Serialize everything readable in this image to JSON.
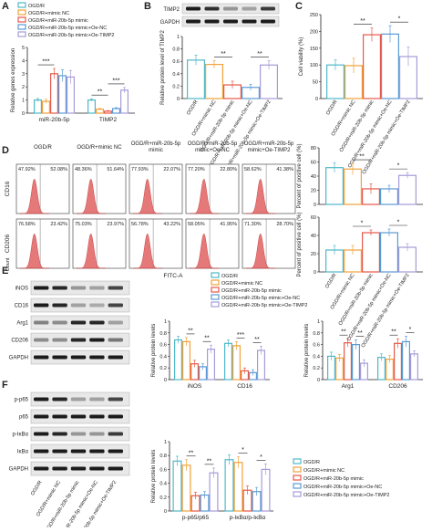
{
  "panel_letters": [
    "A",
    "B",
    "C",
    "D",
    "E",
    "F"
  ],
  "groups": [
    "OGD/R",
    "OGD/R+mimic NC",
    "OGD/R+miR-20b-5p mimic",
    "OGD/R+miR-20b-5p mimic+Oe-NC",
    "OGD/R+miR-20b-5p mimic+Oe-TIMP2"
  ],
  "group_axis_labels": [
    "OGD/R",
    "OGD/R+mimic NC",
    "OGD/R+miR-20b-5p mimic",
    "OGD/R+miR-20b-5p mimic+Oe-NC",
    "OGD/R+miR-20b-5p mimic+Oe-TIMP2"
  ],
  "colors": {
    "g1": "#4fb8c8",
    "g2": "#f0a23a",
    "g3": "#e6584a",
    "g4": "#5b9bd5",
    "g5": "#a79bd8",
    "hist_fill": "#e06060",
    "blot_bg": "#e8e8e8",
    "band": "#1c1c1c"
  },
  "chart_data": [
    {
      "id": "A",
      "type": "bar",
      "ylabel": "Relative genes expression",
      "ylim": [
        0,
        5
      ],
      "categories": [
        "miR-20b-5p",
        "TIMP2"
      ],
      "series_values": [
        [
          1.0,
          1.0
        ],
        [
          0.9,
          0.3
        ],
        [
          3.0,
          0.15
        ],
        [
          2.85,
          0.35
        ],
        [
          2.75,
          1.75
        ]
      ],
      "errors": [
        [
          0.12,
          0.1
        ],
        [
          0.15,
          0.06
        ],
        [
          0.4,
          0.05
        ],
        [
          0.45,
          0.07
        ],
        [
          0.5,
          0.2
        ]
      ],
      "sig": [
        {
          "cat": 0,
          "from": 0,
          "to": 2,
          "label": "***"
        },
        {
          "cat": 1,
          "from": 0,
          "to": 2,
          "label": "**"
        },
        {
          "cat": 1,
          "from": 2,
          "to": 4,
          "label": "***"
        }
      ]
    },
    {
      "id": "B",
      "type": "bar",
      "ylabel": "Relative protein level of TIMP2",
      "ylim": [
        0,
        1.0
      ],
      "values": [
        0.62,
        0.55,
        0.22,
        0.18,
        0.54
      ],
      "errors": [
        0.08,
        0.06,
        0.06,
        0.05,
        0.07
      ],
      "sig": [
        {
          "from": 1,
          "to": 2,
          "label": "**"
        },
        {
          "from": 3,
          "to": 4,
          "label": "**"
        }
      ]
    },
    {
      "id": "C",
      "type": "bar",
      "ylabel": "Cell viability (%)",
      "ylim": [
        0,
        250
      ],
      "values": [
        100,
        98,
        190,
        192,
        125
      ],
      "errors": [
        15,
        22,
        20,
        25,
        28
      ],
      "sig": [
        {
          "from": 1,
          "to": 2,
          "label": "**"
        },
        {
          "from": 3,
          "to": 4,
          "label": "*"
        }
      ]
    },
    {
      "id": "D-CD16",
      "type": "bar",
      "ylabel": "Percent of positive cell (%)",
      "ylim": [
        0,
        80
      ],
      "values": [
        52,
        50,
        22,
        22,
        41
      ],
      "errors": [
        7,
        8,
        7,
        5,
        4
      ],
      "sig": [
        {
          "from": 1,
          "to": 2,
          "label": "**"
        },
        {
          "from": 3,
          "to": 4,
          "label": "*"
        }
      ]
    },
    {
      "id": "D-CD206",
      "type": "bar",
      "ylabel": "Percent of positive cell (%)",
      "ylim": [
        0,
        60
      ],
      "values": [
        24,
        24,
        43,
        43,
        27
      ],
      "errors": [
        5,
        5,
        3,
        4,
        4
      ],
      "sig": [
        {
          "from": 1,
          "to": 2,
          "label": "*"
        },
        {
          "from": 3,
          "to": 4,
          "label": "*"
        }
      ]
    },
    {
      "id": "E-M1",
      "type": "bar",
      "ylabel": "Relative protein levels",
      "ylim": [
        0,
        1.0
      ],
      "categories": [
        "iNOS",
        "CD16"
      ],
      "series_values": [
        [
          0.68,
          0.62
        ],
        [
          0.65,
          0.58
        ],
        [
          0.27,
          0.15
        ],
        [
          0.22,
          0.12
        ],
        [
          0.52,
          0.5
        ]
      ],
      "errors": [
        [
          0.06,
          0.06
        ],
        [
          0.07,
          0.07
        ],
        [
          0.06,
          0.05
        ],
        [
          0.05,
          0.05
        ],
        [
          0.07,
          0.07
        ]
      ],
      "sig": [
        {
          "cat": 0,
          "from": 1,
          "to": 2,
          "label": "**"
        },
        {
          "cat": 0,
          "from": 3,
          "to": 4,
          "label": "**"
        },
        {
          "cat": 1,
          "from": 1,
          "to": 2,
          "label": "***"
        },
        {
          "cat": 1,
          "from": 3,
          "to": 4,
          "label": "**"
        }
      ]
    },
    {
      "id": "E-M2",
      "type": "bar",
      "ylabel": "Relative protein levels",
      "ylim": [
        0,
        1.0
      ],
      "categories": [
        "Arg1",
        "CD206"
      ],
      "series_values": [
        [
          0.4,
          0.38
        ],
        [
          0.37,
          0.35
        ],
        [
          0.63,
          0.62
        ],
        [
          0.6,
          0.65
        ],
        [
          0.28,
          0.44
        ]
      ],
      "errors": [
        [
          0.07,
          0.06
        ],
        [
          0.06,
          0.06
        ],
        [
          0.07,
          0.08
        ],
        [
          0.08,
          0.09
        ],
        [
          0.06,
          0.05
        ]
      ],
      "sig": [
        {
          "cat": 0,
          "from": 1,
          "to": 2,
          "label": "**"
        },
        {
          "cat": 0,
          "from": 3,
          "to": 4,
          "label": "**"
        },
        {
          "cat": 1,
          "from": 1,
          "to": 2,
          "label": "**"
        },
        {
          "cat": 1,
          "from": 3,
          "to": 4,
          "label": "*"
        }
      ]
    },
    {
      "id": "F",
      "type": "bar",
      "ylabel": "Relative protein levels",
      "ylim": [
        0,
        1.0
      ],
      "categories": [
        "p-p65/p65",
        "p-IκBα/p-IκBα"
      ],
      "series_values": [
        [
          0.72,
          0.74
        ],
        [
          0.66,
          0.7
        ],
        [
          0.22,
          0.3
        ],
        [
          0.23,
          0.28
        ],
        [
          0.55,
          0.6
        ]
      ],
      "errors": [
        [
          0.07,
          0.07
        ],
        [
          0.08,
          0.08
        ],
        [
          0.05,
          0.06
        ],
        [
          0.05,
          0.06
        ],
        [
          0.07,
          0.08
        ]
      ],
      "sig": [
        {
          "cat": 0,
          "from": 1,
          "to": 2,
          "label": "**"
        },
        {
          "cat": 0,
          "from": 3,
          "to": 4,
          "label": "**"
        },
        {
          "cat": 1,
          "from": 1,
          "to": 2,
          "label": "*"
        },
        {
          "cat": 1,
          "from": 3,
          "to": 4,
          "label": "*"
        }
      ]
    },
    {
      "id": "D-flow",
      "type": "histogram",
      "x_axis_label": "FITC-A",
      "y_axis_label": "Count",
      "row_labels": [
        "CD16",
        "CD206"
      ],
      "column_titles": [
        "OGD/R",
        "OGD/R+mimic NC",
        "OGD/R+miR-20b-5p\nmimic",
        "OGD/R+miR-20b-5p\nmimic+Oe-NC",
        "OGD/R+miR-20b-5p\nmimic+Oe-TIMP2"
      ],
      "percentages": [
        [
          [
            "47.92%",
            "52.08%"
          ],
          [
            "48.36%",
            "51.64%"
          ],
          [
            "77.93%",
            "22.07%"
          ],
          [
            "77.20%",
            "22.80%"
          ],
          [
            "58.62%",
            "41.38%"
          ]
        ],
        [
          [
            "76.58%",
            "23.42%"
          ],
          [
            "75.03%",
            "23.97%"
          ],
          [
            "56.78%",
            "43.22%"
          ],
          [
            "58.05%",
            "41.95%"
          ],
          [
            "71.30%",
            "28.70%"
          ]
        ]
      ]
    }
  ],
  "blots": {
    "B": [
      "TIMP2",
      "GAPDH"
    ],
    "E": [
      "iNOS",
      "CD16",
      "Arg1",
      "CD206",
      "GAPDH"
    ],
    "F": [
      "p-p65",
      "p65",
      "p-IκBα",
      "IκBα",
      "GAPDH"
    ]
  }
}
